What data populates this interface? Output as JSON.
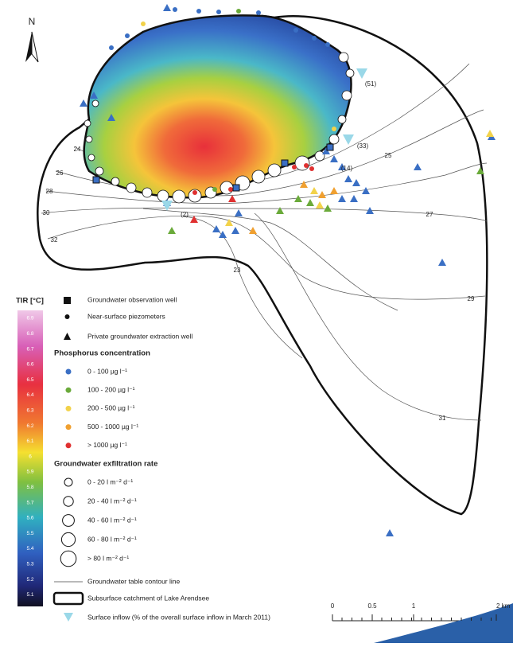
{
  "north": "N",
  "contour_labels": [
    "24",
    "26",
    "28",
    "30",
    "32",
    "23",
    "25",
    "27",
    "29",
    "31"
  ],
  "inflow_labels": [
    "(51)",
    "(33)",
    "(14)",
    "(2)"
  ],
  "legend": {
    "tir_title": "TIR [°C]",
    "tir_ticks": [
      "6.9",
      "6.8",
      "6.7",
      "6.6",
      "6.5",
      "6.4",
      "6.3",
      "6.2",
      "6.1",
      "6",
      "5.9",
      "5.8",
      "5.7",
      "5.6",
      "5.5",
      "5.4",
      "5.3",
      "5.2",
      "5.1"
    ],
    "well_types": [
      "Groundwater observation well",
      "Near-surface piezometers",
      "Private groundwater extraction well"
    ],
    "phosphorus_title": "Phosphorus concentration",
    "phosphorus_classes": [
      "0 - 100 µg l⁻¹",
      "100 - 200 µg l⁻¹",
      "200 - 500 µg l⁻¹",
      "500 - 1000  µg l⁻¹",
      "> 1000 µg l⁻¹"
    ],
    "exfiltration_title": "Groundwater exfiltration rate",
    "exfiltration_classes": [
      "0 - 20 l m⁻² d⁻¹",
      "20 - 40 l m⁻² d⁻¹",
      "40 - 60 l m⁻² d⁻¹",
      "60 - 80 l m⁻² d⁻¹",
      "> 80 l m⁻² d⁻¹"
    ],
    "contour": "Groundwater table contour line",
    "catchment": "Subsurface catchment of Lake Arendsee",
    "inflow": "Surface inflow (% of the overall surface inflow in March 2011)"
  },
  "scale_bar": {
    "labels": [
      "0",
      "0.5",
      "1",
      "2 km"
    ]
  }
}
